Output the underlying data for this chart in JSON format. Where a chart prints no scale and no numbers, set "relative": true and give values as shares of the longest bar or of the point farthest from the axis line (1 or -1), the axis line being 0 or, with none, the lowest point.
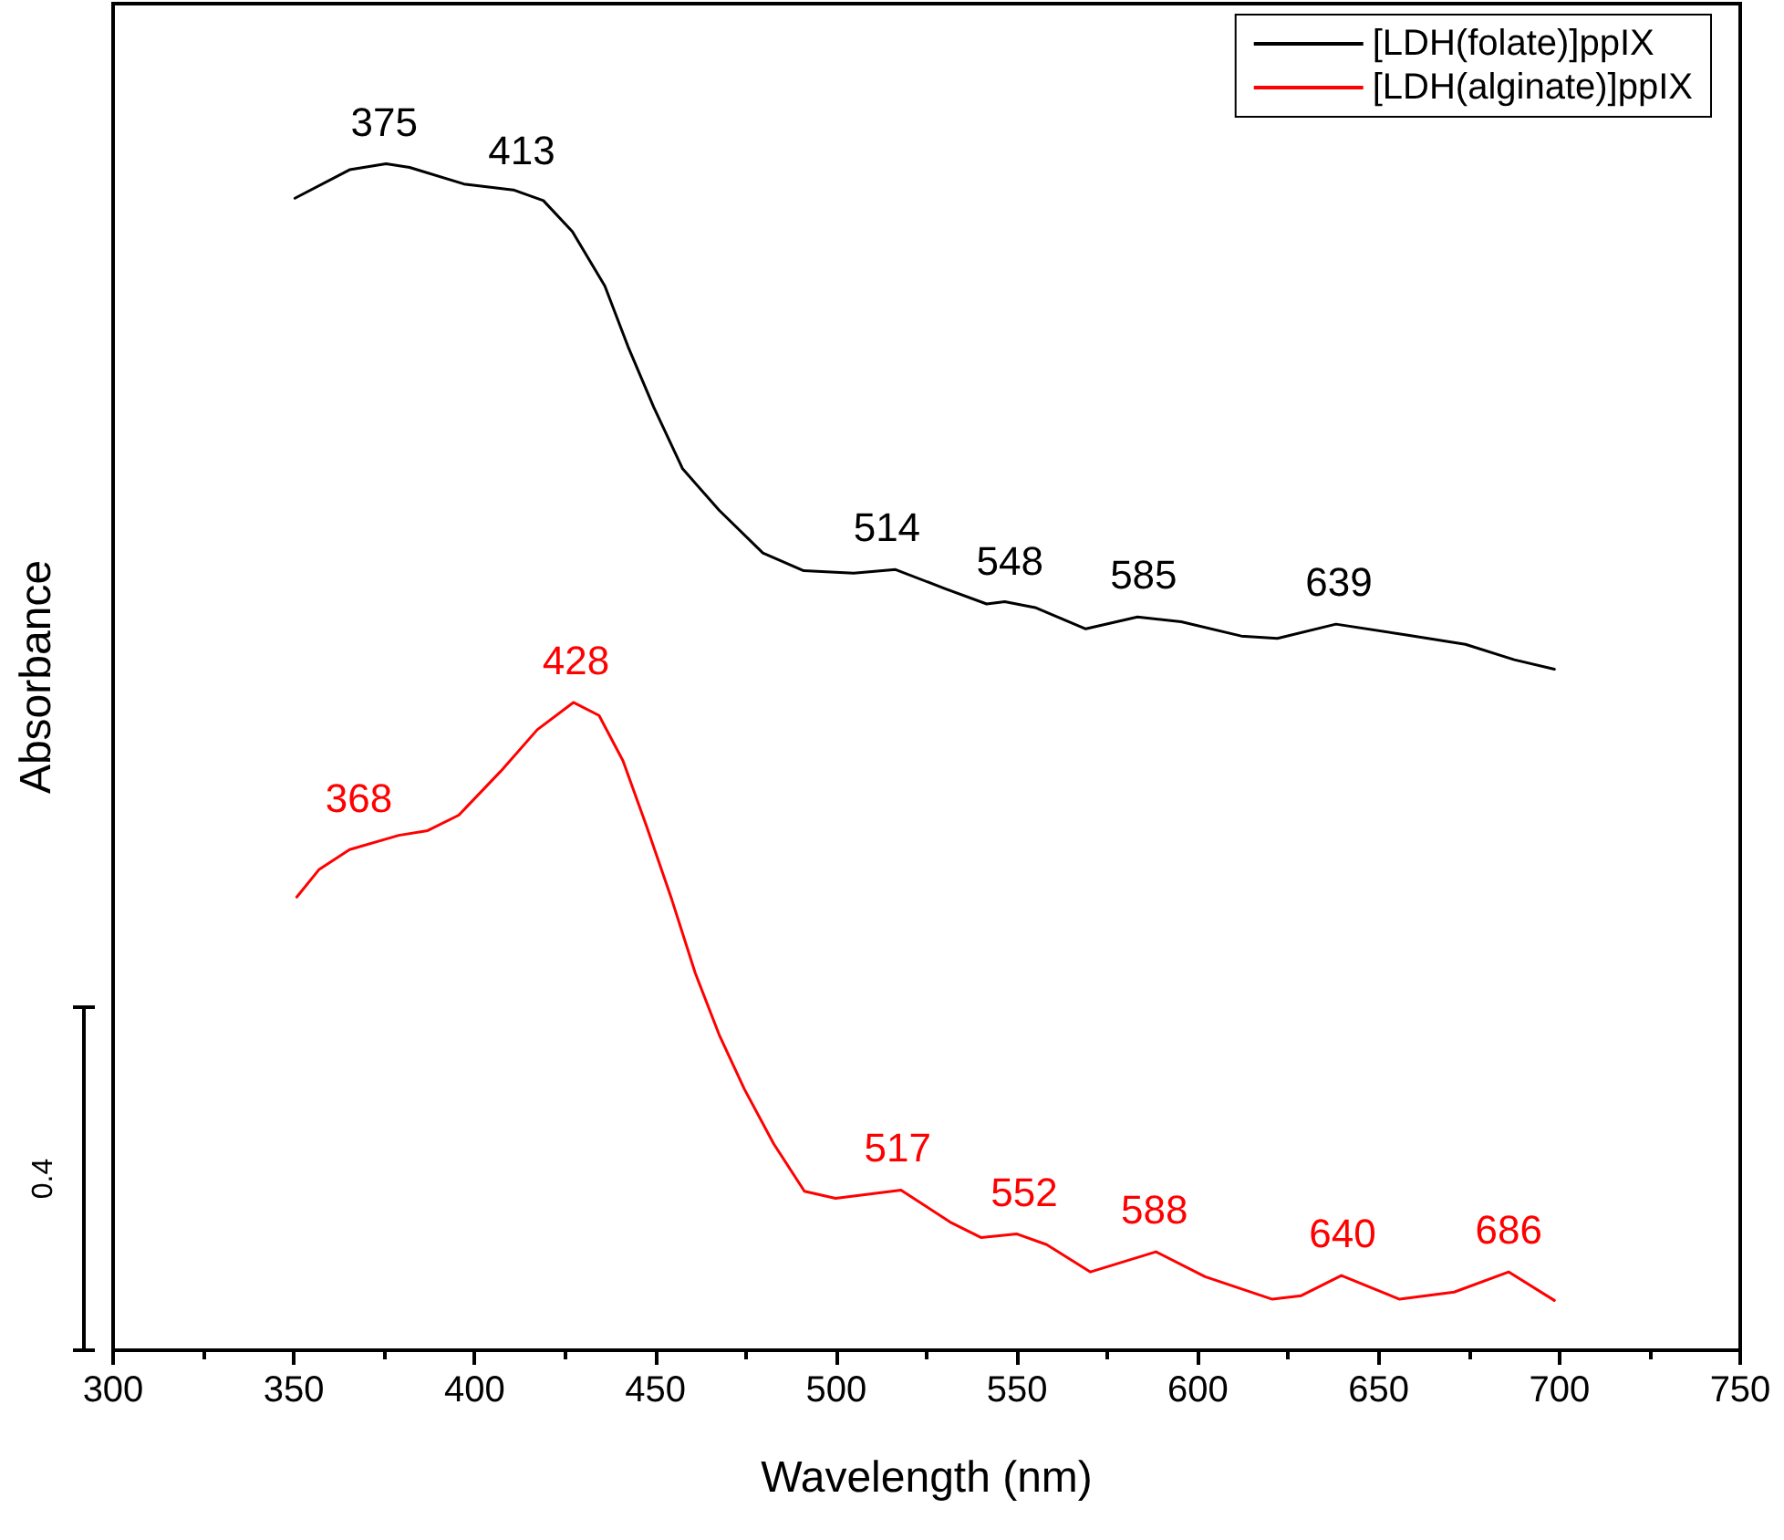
{
  "chart_data": {
    "type": "line",
    "xlabel": "Wavelength (nm)",
    "ylabel": "Absorbance",
    "relative": true,
    "tick_labels": "x",
    "grid": false,
    "legend": "top right",
    "marker": "none",
    "line_style": "solid",
    "xlim": [
      300,
      750
    ],
    "xticks": [
      300,
      350,
      400,
      450,
      500,
      550,
      600,
      650,
      700,
      750
    ],
    "series": [
      {
        "name": "[LDH(folate)]ppIX",
        "color": "#000000",
        "x": [
          350.3,
          365.4,
          375.5,
          382,
          397,
          410.7,
          419,
          427,
          436,
          442.4,
          449.5,
          457.5,
          467.6,
          479.7,
          491,
          504.8,
          516.4,
          530,
          541.6,
          546.6,
          555,
          569,
          583.3,
          595.4,
          612,
          622,
          638.2,
          657.3,
          674,
          687.5,
          698.6
        ],
        "values": [
          0.971,
          0.995,
          1.0,
          0.997,
          0.983,
          0.978,
          0.969,
          0.943,
          0.897,
          0.846,
          0.795,
          0.743,
          0.708,
          0.672,
          0.657,
          0.655,
          0.658,
          0.642,
          0.629,
          0.631,
          0.626,
          0.608,
          0.618,
          0.614,
          0.602,
          0.6,
          0.612,
          0.603,
          0.595,
          0.582,
          0.574
        ]
      },
      {
        "name": "[LDH(alginate)]ppIX",
        "color": "#ff0000",
        "x": [
          350.8,
          356.9,
          365.4,
          379,
          387,
          395.6,
          407.2,
          417.3,
          427.3,
          434.4,
          441,
          447.5,
          454.5,
          461,
          467.6,
          474.6,
          482.7,
          491.2,
          499.8,
          517.9,
          531.5,
          540,
          550,
          558.2,
          570.3,
          588.4,
          602,
          620.6,
          628.6,
          639.7,
          655.8,
          670.9,
          686,
          698.6
        ],
        "values": [
          0.382,
          0.405,
          0.422,
          0.434,
          0.438,
          0.451,
          0.488,
          0.523,
          0.546,
          0.535,
          0.497,
          0.442,
          0.38,
          0.318,
          0.266,
          0.22,
          0.174,
          0.134,
          0.128,
          0.135,
          0.108,
          0.095,
          0.098,
          0.089,
          0.066,
          0.083,
          0.062,
          0.043,
          0.046,
          0.063,
          0.043,
          0.049,
          0.066,
          0.042
        ]
      }
    ],
    "annotations": [
      {
        "text": "375",
        "x": 375,
        "y": 1.0
      },
      {
        "text": "413",
        "x": 413,
        "y": 0.976
      },
      {
        "text": "514",
        "x": 514,
        "y": 0.658
      },
      {
        "text": "548",
        "x": 548,
        "y": 0.63
      },
      {
        "text": "585",
        "x": 585,
        "y": 0.618
      },
      {
        "text": "639",
        "x": 639,
        "y": 0.612
      },
      {
        "text": "368",
        "x": 368,
        "y": 0.43
      },
      {
        "text": "428",
        "x": 428,
        "y": 0.546
      },
      {
        "text": "517",
        "x": 517,
        "y": 0.135
      },
      {
        "text": "552",
        "x": 552,
        "y": 0.098
      },
      {
        "text": "588",
        "x": 588,
        "y": 0.083
      },
      {
        "text": "640",
        "x": 640,
        "y": 0.063
      },
      {
        "text": "686",
        "x": 686,
        "y": 0.066
      },
      "0.4"
    ]
  }
}
